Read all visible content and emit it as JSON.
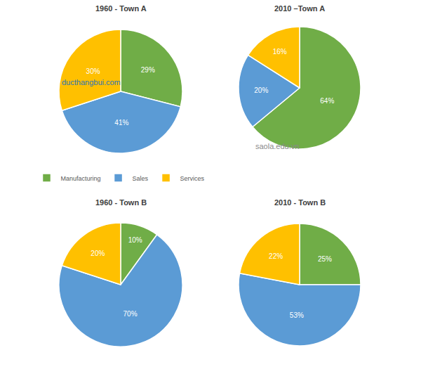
{
  "chart_data": [
    {
      "type": "pie",
      "title": "1960 - Town A",
      "categories": [
        "Manufacturing",
        "Sales",
        "Services"
      ],
      "values": [
        29,
        41,
        30
      ],
      "value_labels": [
        "29%",
        "41%",
        "30%"
      ],
      "colors": [
        "#70ad47",
        "#5b9bd5",
        "#ffc000"
      ],
      "data_labels": true,
      "legend": "bottom",
      "annotations": [
        "ducthangbui.com"
      ]
    },
    {
      "type": "pie",
      "title": "2010 –Town A",
      "categories": [
        "Manufacturing",
        "Sales",
        "Services"
      ],
      "values": [
        64,
        20,
        16
      ],
      "value_labels": [
        "64%",
        "20%",
        "16%"
      ],
      "colors": [
        "#70ad47",
        "#5b9bd5",
        "#ffc000"
      ],
      "data_labels": true,
      "legend": "bottom",
      "annotations": [
        "saola.edu.vn"
      ]
    },
    {
      "type": "pie",
      "title": "1960 - Town B",
      "categories": [
        "Manufacturing",
        "Sales",
        "Services"
      ],
      "values": [
        10,
        70,
        20
      ],
      "value_labels": [
        "10%",
        "70%",
        "20%"
      ],
      "colors": [
        "#70ad47",
        "#5b9bd5",
        "#ffc000"
      ],
      "data_labels": true,
      "legend": "bottom"
    },
    {
      "type": "pie",
      "title": "2010 - Town B",
      "categories": [
        "Manufacturing",
        "Sales",
        "Services"
      ],
      "values": [
        25,
        53,
        22
      ],
      "value_labels": [
        "25%",
        "53%",
        "22%"
      ],
      "colors": [
        "#70ad47",
        "#5b9bd5",
        "#ffc000"
      ],
      "data_labels": true,
      "legend": "bottom"
    }
  ]
}
